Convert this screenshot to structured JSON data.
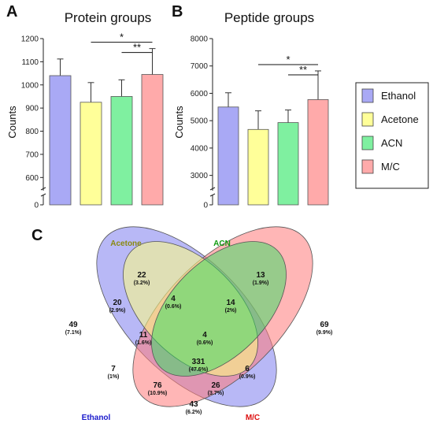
{
  "panels": {
    "a": "A",
    "b": "B",
    "c": "C"
  },
  "chart_data": [
    {
      "type": "bar",
      "title": "Protein groups",
      "ylabel": "Counts",
      "categories": [
        "Ethanol",
        "Acetone",
        "ACN",
        "M/C"
      ],
      "values": [
        1040,
        925,
        950,
        1045
      ],
      "errors": [
        72,
        85,
        72,
        112
      ],
      "colors": [
        "#a9a9f5",
        "#ffff99",
        "#7ff0a0",
        "#ffaaaa"
      ],
      "ylim": [
        550,
        1200
      ],
      "axis_break": true,
      "yticks": [
        "0",
        "600",
        "700",
        "800",
        "900",
        "1000",
        "1100",
        "1200"
      ],
      "significance": [
        {
          "from": 1,
          "to": 3,
          "label": "*"
        },
        {
          "from": 2,
          "to": 3,
          "label": "**"
        }
      ]
    },
    {
      "type": "bar",
      "title": "Peptide groups",
      "ylabel": "Counts",
      "categories": [
        "Ethanol",
        "Acetone",
        "ACN",
        "M/C"
      ],
      "values": [
        5500,
        4680,
        4930,
        5770
      ],
      "errors": [
        520,
        680,
        460,
        1050
      ],
      "colors": [
        "#a9a9f5",
        "#ffff99",
        "#7ff0a0",
        "#ffaaaa"
      ],
      "ylim": [
        2500,
        8000
      ],
      "axis_break": true,
      "yticks": [
        "0",
        "3000",
        "4000",
        "5000",
        "6000",
        "7000",
        "8000"
      ],
      "significance": [
        {
          "from": 1,
          "to": 3,
          "label": "*"
        },
        {
          "from": 2,
          "to": 3,
          "label": "**"
        }
      ]
    },
    {
      "type": "venn",
      "sets": [
        {
          "name": "Ethanol",
          "color": "#1a1acc"
        },
        {
          "name": "Acetone",
          "color": "#8a8a10"
        },
        {
          "name": "ACN",
          "color": "#109b10"
        },
        {
          "name": "M/C",
          "color": "#dd1111"
        }
      ],
      "regions": [
        {
          "sets": "Acetone",
          "count": "22",
          "pct": "(3.2%)"
        },
        {
          "sets": "ACN",
          "count": "13",
          "pct": "(1.9%)"
        },
        {
          "sets": "Ethanol∩Acetone",
          "count": "20",
          "pct": "(2.9%)"
        },
        {
          "sets": "Acetone∩ACN",
          "count": "4",
          "pct": "(0.6%)"
        },
        {
          "sets": "ACN∩M/C",
          "count": "14",
          "pct": "(2%)"
        },
        {
          "sets": "Ethanol",
          "count": "49",
          "pct": "(7.1%)"
        },
        {
          "sets": "M/C",
          "count": "69",
          "pct": "(9.9%)"
        },
        {
          "sets": "Ethanol∩Acetone∩ACN",
          "count": "11",
          "pct": "(1.6%)"
        },
        {
          "sets": "Acetone∩ACN∩M/C",
          "count": "4",
          "pct": "(0.6%)"
        },
        {
          "sets": "All",
          "count": "331",
          "pct": "(47.6%)"
        },
        {
          "sets": "Ethanol∩ACN",
          "count": "7",
          "pct": "(1%)"
        },
        {
          "sets": "Acetone∩M/C",
          "count": "6",
          "pct": "(0.9%)"
        },
        {
          "sets": "Ethanol∩ACN∩M/C",
          "count": "76",
          "pct": "(10.9%)"
        },
        {
          "sets": "Ethanol∩Acetone∩M/C",
          "count": "26",
          "pct": "(3.7%)"
        },
        {
          "sets": "Ethanol∩M/C",
          "count": "43",
          "pct": "(6.2%)"
        }
      ]
    }
  ],
  "legend": [
    {
      "label": "Ethanol",
      "color": "#a9a9f5"
    },
    {
      "label": "Acetone",
      "color": "#ffff99"
    },
    {
      "label": "ACN",
      "color": "#7ff0a0"
    },
    {
      "label": "M/C",
      "color": "#ffaaaa"
    }
  ]
}
